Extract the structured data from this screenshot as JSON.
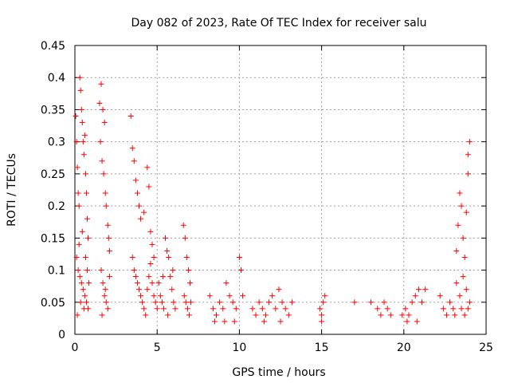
{
  "chart_data": {
    "type": "scatter",
    "title": "Day 082 of 2023, Rate Of TEC Index for receiver salu",
    "xlabel": "GPS time / hours",
    "ylabel": "ROTI / TECUs",
    "xlim": [
      0,
      25
    ],
    "ylim": [
      0,
      0.45
    ],
    "xticks": [
      0,
      5,
      10,
      15,
      20,
      25
    ],
    "xtick_labels": [
      "0",
      "5",
      "10",
      "15",
      "20",
      "25"
    ],
    "yticks": [
      0,
      0.05,
      0.1,
      0.15,
      0.2,
      0.25,
      0.3,
      0.35,
      0.4,
      0.45
    ],
    "ytick_labels": [
      "0",
      "0.05",
      "0.1",
      "0.15",
      "0.2",
      "0.25",
      "0.3",
      "0.35",
      "0.4",
      "0.45"
    ],
    "grid": true,
    "marker": "+",
    "color": "#ff0000",
    "series": [
      {
        "name": "ROTI",
        "points": [
          [
            0.05,
            0.34
          ],
          [
            0.1,
            0.3
          ],
          [
            0.15,
            0.26
          ],
          [
            0.2,
            0.22
          ],
          [
            0.25,
            0.2
          ],
          [
            0.3,
            0.4
          ],
          [
            0.35,
            0.38
          ],
          [
            0.4,
            0.35
          ],
          [
            0.45,
            0.33
          ],
          [
            0.5,
            0.3
          ],
          [
            0.55,
            0.28
          ],
          [
            0.6,
            0.31
          ],
          [
            0.65,
            0.25
          ],
          [
            0.7,
            0.22
          ],
          [
            0.75,
            0.18
          ],
          [
            0.8,
            0.15
          ],
          [
            0.1,
            0.12
          ],
          [
            0.2,
            0.1
          ],
          [
            0.3,
            0.09
          ],
          [
            0.4,
            0.08
          ],
          [
            0.5,
            0.07
          ],
          [
            0.6,
            0.06
          ],
          [
            0.7,
            0.05
          ],
          [
            0.8,
            0.04
          ],
          [
            0.15,
            0.03
          ],
          [
            0.35,
            0.05
          ],
          [
            0.55,
            0.04
          ],
          [
            0.25,
            0.14
          ],
          [
            0.45,
            0.16
          ],
          [
            0.65,
            0.12
          ],
          [
            0.75,
            0.1
          ],
          [
            0.85,
            0.08
          ],
          [
            1.5,
            0.36
          ],
          [
            1.6,
            0.39
          ],
          [
            1.7,
            0.35
          ],
          [
            1.8,
            0.33
          ],
          [
            1.55,
            0.3
          ],
          [
            1.65,
            0.27
          ],
          [
            1.75,
            0.25
          ],
          [
            1.85,
            0.22
          ],
          [
            1.9,
            0.2
          ],
          [
            2.0,
            0.17
          ],
          [
            2.05,
            0.15
          ],
          [
            2.1,
            0.13
          ],
          [
            1.6,
            0.1
          ],
          [
            1.7,
            0.08
          ],
          [
            1.8,
            0.06
          ],
          [
            1.9,
            0.05
          ],
          [
            2.0,
            0.04
          ],
          [
            1.65,
            0.03
          ],
          [
            1.85,
            0.07
          ],
          [
            2.1,
            0.09
          ],
          [
            3.4,
            0.34
          ],
          [
            3.5,
            0.29
          ],
          [
            3.6,
            0.27
          ],
          [
            3.7,
            0.24
          ],
          [
            3.8,
            0.22
          ],
          [
            3.9,
            0.2
          ],
          [
            4.0,
            0.18
          ],
          [
            4.2,
            0.19
          ],
          [
            4.4,
            0.26
          ],
          [
            4.5,
            0.23
          ],
          [
            4.6,
            0.16
          ],
          [
            4.7,
            0.14
          ],
          [
            4.8,
            0.12
          ],
          [
            3.5,
            0.12
          ],
          [
            3.6,
            0.1
          ],
          [
            3.7,
            0.09
          ],
          [
            3.8,
            0.08
          ],
          [
            3.9,
            0.07
          ],
          [
            4.0,
            0.06
          ],
          [
            4.1,
            0.05
          ],
          [
            4.2,
            0.04
          ],
          [
            4.3,
            0.03
          ],
          [
            4.4,
            0.07
          ],
          [
            4.5,
            0.09
          ],
          [
            4.6,
            0.11
          ],
          [
            4.7,
            0.08
          ],
          [
            4.8,
            0.06
          ],
          [
            4.9,
            0.05
          ],
          [
            5.0,
            0.04
          ],
          [
            5.1,
            0.08
          ],
          [
            5.2,
            0.06
          ],
          [
            5.3,
            0.05
          ],
          [
            5.4,
            0.04
          ],
          [
            5.5,
            0.15
          ],
          [
            5.6,
            0.13
          ],
          [
            5.7,
            0.12
          ],
          [
            5.8,
            0.09
          ],
          [
            5.9,
            0.07
          ],
          [
            6.0,
            0.05
          ],
          [
            6.1,
            0.04
          ],
          [
            5.35,
            0.09
          ],
          [
            5.65,
            0.03
          ],
          [
            5.95,
            0.1
          ],
          [
            6.6,
            0.17
          ],
          [
            6.7,
            0.15
          ],
          [
            6.8,
            0.12
          ],
          [
            6.9,
            0.1
          ],
          [
            7.0,
            0.08
          ],
          [
            6.65,
            0.06
          ],
          [
            6.75,
            0.05
          ],
          [
            6.85,
            0.04
          ],
          [
            6.95,
            0.03
          ],
          [
            7.05,
            0.05
          ],
          [
            8.2,
            0.06
          ],
          [
            8.4,
            0.04
          ],
          [
            8.6,
            0.03
          ],
          [
            8.8,
            0.05
          ],
          [
            9.0,
            0.04
          ],
          [
            9.2,
            0.08
          ],
          [
            9.4,
            0.06
          ],
          [
            9.6,
            0.05
          ],
          [
            9.8,
            0.04
          ],
          [
            10.0,
            0.12
          ],
          [
            10.1,
            0.1
          ],
          [
            10.2,
            0.06
          ],
          [
            8.5,
            0.02
          ],
          [
            9.1,
            0.02
          ],
          [
            9.7,
            0.02
          ],
          [
            10.8,
            0.04
          ],
          [
            11.0,
            0.03
          ],
          [
            11.2,
            0.05
          ],
          [
            11.4,
            0.04
          ],
          [
            11.6,
            0.03
          ],
          [
            11.8,
            0.05
          ],
          [
            12.0,
            0.06
          ],
          [
            12.2,
            0.04
          ],
          [
            12.4,
            0.07
          ],
          [
            12.6,
            0.05
          ],
          [
            12.8,
            0.04
          ],
          [
            13.0,
            0.03
          ],
          [
            13.2,
            0.05
          ],
          [
            11.5,
            0.02
          ],
          [
            12.5,
            0.02
          ],
          [
            14.9,
            0.04
          ],
          [
            15.0,
            0.03
          ],
          [
            15.1,
            0.05
          ],
          [
            15.2,
            0.06
          ],
          [
            15.0,
            0.02
          ],
          [
            18.4,
            0.04
          ],
          [
            18.6,
            0.03
          ],
          [
            18.8,
            0.05
          ],
          [
            19.0,
            0.04
          ],
          [
            19.2,
            0.03
          ],
          [
            17.0,
            0.05
          ],
          [
            18.0,
            0.05
          ],
          [
            19.9,
            0.03
          ],
          [
            20.1,
            0.04
          ],
          [
            20.3,
            0.03
          ],
          [
            20.5,
            0.05
          ],
          [
            20.7,
            0.06
          ],
          [
            20.9,
            0.07
          ],
          [
            21.1,
            0.05
          ],
          [
            21.3,
            0.07
          ],
          [
            20.2,
            0.02
          ],
          [
            20.8,
            0.02
          ],
          [
            22.2,
            0.06
          ],
          [
            22.4,
            0.04
          ],
          [
            22.6,
            0.03
          ],
          [
            22.8,
            0.05
          ],
          [
            23.0,
            0.04
          ],
          [
            23.2,
            0.13
          ],
          [
            23.3,
            0.17
          ],
          [
            23.4,
            0.22
          ],
          [
            23.5,
            0.2
          ],
          [
            23.6,
            0.15
          ],
          [
            23.7,
            0.12
          ],
          [
            23.8,
            0.19
          ],
          [
            23.9,
            0.25
          ],
          [
            24.0,
            0.3
          ],
          [
            23.9,
            0.28
          ],
          [
            23.2,
            0.08
          ],
          [
            23.4,
            0.06
          ],
          [
            23.6,
            0.09
          ],
          [
            23.8,
            0.07
          ],
          [
            24.0,
            0.05
          ],
          [
            23.1,
            0.03
          ],
          [
            23.5,
            0.04
          ],
          [
            23.7,
            0.03
          ],
          [
            23.9,
            0.04
          ]
        ]
      }
    ]
  }
}
